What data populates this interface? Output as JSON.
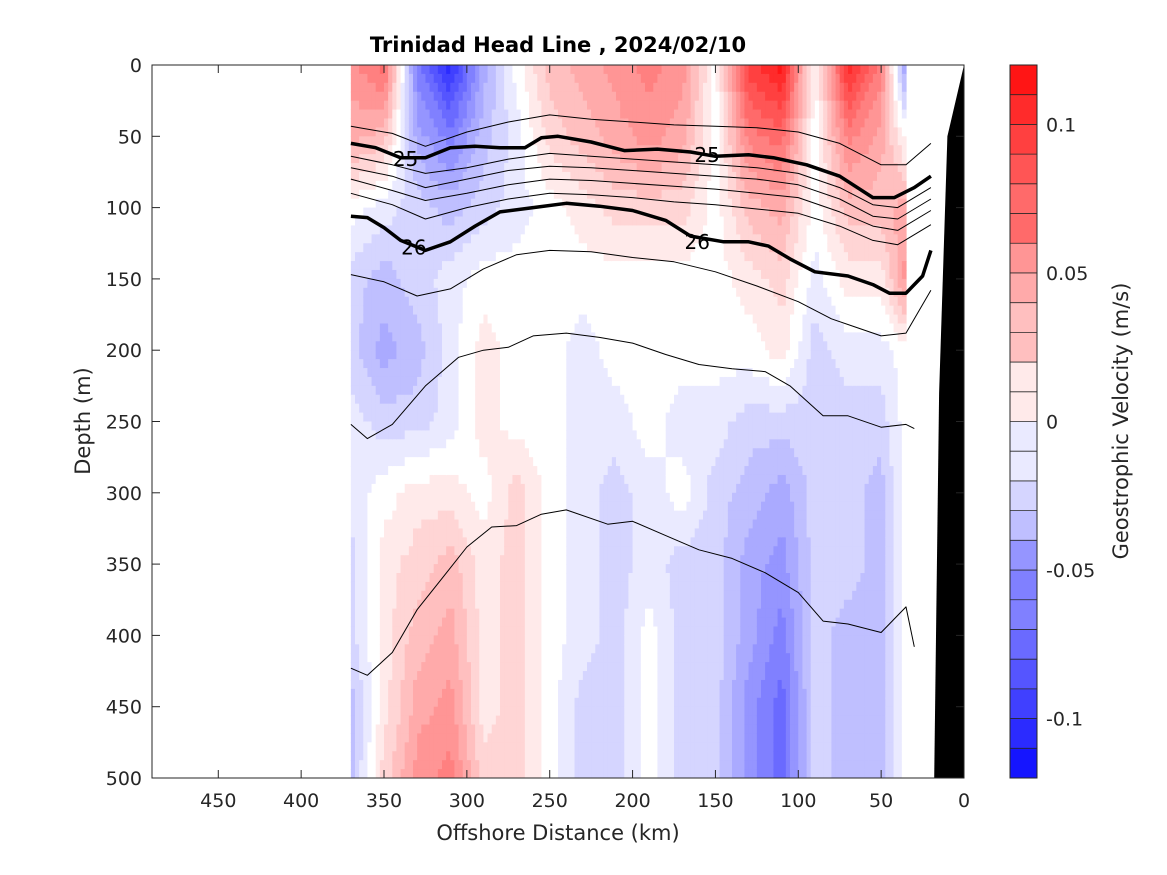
{
  "chart_data": {
    "type": "heatmap",
    "title": "Trinidad Head Line , 2024/02/10",
    "xlabel": "Offshore Distance (km)",
    "ylabel": "Depth (m)",
    "xlim": [
      490,
      0
    ],
    "ylim": [
      0,
      500
    ],
    "x_direction": "reversed",
    "y_direction": "reversed",
    "x_ticks": [
      "450",
      "400",
      "350",
      "300",
      "250",
      "200",
      "150",
      "100",
      "50",
      "0"
    ],
    "y_ticks": [
      "0",
      "50",
      "100",
      "150",
      "200",
      "250",
      "300",
      "350",
      "400",
      "450",
      "500"
    ],
    "colorbar": {
      "label": "Geostrophic Velocity (m/s)",
      "range": [
        -0.12,
        0.12
      ],
      "ticks": [
        "-0.1",
        "-0.05",
        "0",
        "0.05",
        "0.1"
      ],
      "negative_color": "#0000ff",
      "zero_color": "#ffffff",
      "positive_color": "#ff0000"
    },
    "section": {
      "distances_km": [
        370,
        350,
        330,
        310,
        290,
        270,
        250,
        230,
        210,
        190,
        170,
        150,
        130,
        110,
        90,
        70,
        50,
        35
      ],
      "depths_m": [
        0,
        50,
        100,
        150,
        200,
        250,
        300,
        350,
        400,
        450,
        500
      ],
      "velocity_m_s": [
        [
          0.05,
          0.07,
          -0.06,
          -0.1,
          -0.04,
          0.0,
          0.03,
          0.04,
          0.05,
          0.06,
          0.05,
          0.0,
          0.09,
          0.11,
          0.0,
          0.1,
          0.06,
          -0.05
        ],
        [
          0.04,
          0.03,
          -0.04,
          -0.06,
          -0.03,
          -0.01,
          0.02,
          0.03,
          0.04,
          0.05,
          0.04,
          0.0,
          0.06,
          0.07,
          0.0,
          0.06,
          0.04,
          0.0
        ],
        [
          0.0,
          -0.01,
          -0.02,
          -0.03,
          -0.02,
          -0.01,
          0.0,
          0.01,
          0.02,
          0.02,
          0.02,
          0.0,
          0.03,
          0.04,
          0.0,
          0.03,
          0.03,
          0.04
        ],
        [
          -0.02,
          -0.03,
          -0.02,
          -0.01,
          0.0,
          0.0,
          0.0,
          0.0,
          0.0,
          0.0,
          0.0,
          0.0,
          0.01,
          0.02,
          -0.01,
          0.01,
          0.01,
          0.05
        ],
        [
          -0.02,
          -0.04,
          -0.03,
          -0.01,
          0.01,
          0.0,
          0.0,
          -0.01,
          0.0,
          0.0,
          0.0,
          0.0,
          0.0,
          0.01,
          -0.02,
          -0.01,
          -0.01,
          0.0
        ],
        [
          -0.01,
          -0.02,
          -0.02,
          -0.01,
          0.01,
          0.0,
          0.0,
          -0.01,
          -0.01,
          0.0,
          -0.01,
          -0.01,
          -0.02,
          -0.02,
          -0.02,
          -0.02,
          -0.02,
          0.0
        ],
        [
          -0.01,
          0.0,
          0.01,
          0.01,
          0.0,
          0.02,
          0.0,
          -0.01,
          -0.02,
          -0.01,
          0.0,
          -0.02,
          -0.03,
          -0.04,
          -0.02,
          -0.02,
          -0.03,
          0.0
        ],
        [
          -0.02,
          0.01,
          0.02,
          0.03,
          0.01,
          0.02,
          0.0,
          -0.01,
          -0.02,
          -0.01,
          -0.02,
          -0.02,
          -0.04,
          -0.05,
          -0.02,
          -0.02,
          -0.03,
          0.0
        ],
        [
          -0.02,
          0.01,
          0.03,
          0.04,
          0.01,
          0.02,
          0.0,
          -0.01,
          -0.02,
          0.0,
          -0.02,
          -0.02,
          -0.04,
          -0.06,
          -0.02,
          -0.03,
          -0.03,
          0.0
        ],
        [
          -0.03,
          0.01,
          0.04,
          0.05,
          0.01,
          0.02,
          0.0,
          -0.02,
          -0.02,
          0.0,
          -0.02,
          -0.02,
          -0.05,
          -0.07,
          -0.02,
          -0.03,
          -0.03,
          0.0
        ],
        [
          -0.03,
          0.02,
          0.05,
          0.06,
          0.02,
          0.02,
          0.0,
          -0.02,
          -0.02,
          0.0,
          -0.02,
          -0.02,
          -0.05,
          -0.07,
          -0.02,
          -0.03,
          -0.03,
          0.0
        ]
      ]
    },
    "isopycnals": [
      {
        "label": "",
        "bold": false,
        "points": [
          [
            370,
            43
          ],
          [
            345,
            48
          ],
          [
            325,
            57
          ],
          [
            300,
            47
          ],
          [
            275,
            40
          ],
          [
            250,
            35
          ],
          [
            225,
            38
          ],
          [
            200,
            40
          ],
          [
            175,
            42
          ],
          [
            150,
            43
          ],
          [
            125,
            44
          ],
          [
            100,
            47
          ],
          [
            75,
            55
          ],
          [
            50,
            70
          ],
          [
            35,
            70
          ],
          [
            20,
            55
          ]
        ]
      },
      {
        "label": "25",
        "bold": true,
        "label_x": 337,
        "label_y": 66,
        "points": [
          [
            370,
            55
          ],
          [
            355,
            58
          ],
          [
            340,
            65
          ],
          [
            325,
            65
          ],
          [
            310,
            58
          ],
          [
            295,
            57
          ],
          [
            280,
            58
          ],
          [
            265,
            58
          ],
          [
            255,
            51
          ],
          [
            245,
            50
          ],
          [
            225,
            54
          ],
          [
            205,
            60
          ],
          [
            185,
            59
          ],
          [
            165,
            61
          ],
          [
            150,
            64
          ],
          [
            130,
            63
          ],
          [
            115,
            65
          ],
          [
            95,
            70
          ],
          [
            75,
            78
          ],
          [
            55,
            93
          ],
          [
            42,
            93
          ],
          [
            30,
            86
          ],
          [
            20,
            78
          ]
        ]
      },
      {
        "label": "",
        "bold": false,
        "points": [
          [
            370,
            64
          ],
          [
            345,
            70
          ],
          [
            325,
            76
          ],
          [
            300,
            72
          ],
          [
            275,
            66
          ],
          [
            250,
            62
          ],
          [
            225,
            64
          ],
          [
            200,
            66
          ],
          [
            175,
            68
          ],
          [
            150,
            70
          ],
          [
            125,
            72
          ],
          [
            100,
            76
          ],
          [
            75,
            86
          ],
          [
            55,
            98
          ],
          [
            40,
            100
          ],
          [
            20,
            86
          ]
        ]
      },
      {
        "label": "",
        "bold": false,
        "points": [
          [
            370,
            72
          ],
          [
            345,
            78
          ],
          [
            325,
            86
          ],
          [
            300,
            80
          ],
          [
            275,
            74
          ],
          [
            250,
            71
          ],
          [
            225,
            72
          ],
          [
            200,
            74
          ],
          [
            175,
            76
          ],
          [
            150,
            78
          ],
          [
            125,
            80
          ],
          [
            100,
            84
          ],
          [
            75,
            94
          ],
          [
            55,
            106
          ],
          [
            40,
            108
          ],
          [
            20,
            94
          ]
        ]
      },
      {
        "label": "",
        "bold": false,
        "points": [
          [
            370,
            80
          ],
          [
            345,
            88
          ],
          [
            325,
            95
          ],
          [
            300,
            90
          ],
          [
            275,
            84
          ],
          [
            250,
            80
          ],
          [
            225,
            81
          ],
          [
            200,
            83
          ],
          [
            175,
            85
          ],
          [
            150,
            87
          ],
          [
            125,
            90
          ],
          [
            100,
            93
          ],
          [
            75,
            103
          ],
          [
            55,
            113
          ],
          [
            40,
            116
          ],
          [
            20,
            102
          ]
        ]
      },
      {
        "label": "",
        "bold": false,
        "points": [
          [
            370,
            90
          ],
          [
            345,
            98
          ],
          [
            325,
            108
          ],
          [
            300,
            100
          ],
          [
            275,
            94
          ],
          [
            250,
            90
          ],
          [
            225,
            91
          ],
          [
            200,
            93
          ],
          [
            175,
            96
          ],
          [
            150,
            98
          ],
          [
            125,
            101
          ],
          [
            100,
            104
          ],
          [
            75,
            113
          ],
          [
            55,
            123
          ],
          [
            40,
            126
          ],
          [
            20,
            112
          ]
        ]
      },
      {
        "label": "26",
        "bold": true,
        "label_x": 332,
        "label_y": 128,
        "points": [
          [
            370,
            106
          ],
          [
            360,
            107
          ],
          [
            350,
            114
          ],
          [
            340,
            123
          ],
          [
            325,
            130
          ],
          [
            310,
            124
          ],
          [
            295,
            113
          ],
          [
            280,
            103
          ],
          [
            260,
            100
          ],
          [
            240,
            97
          ],
          [
            220,
            99
          ],
          [
            200,
            102
          ],
          [
            180,
            109
          ],
          [
            165,
            120
          ],
          [
            145,
            124
          ],
          [
            130,
            124
          ],
          [
            118,
            127
          ],
          [
            105,
            136
          ],
          [
            90,
            145
          ],
          [
            70,
            148
          ],
          [
            55,
            154
          ],
          [
            45,
            160
          ],
          [
            35,
            160
          ],
          [
            25,
            148
          ],
          [
            20,
            130
          ]
        ]
      },
      {
        "label": "",
        "bold": false,
        "points": [
          [
            370,
            147
          ],
          [
            350,
            152
          ],
          [
            330,
            162
          ],
          [
            310,
            157
          ],
          [
            290,
            143
          ],
          [
            270,
            133
          ],
          [
            250,
            130
          ],
          [
            225,
            131
          ],
          [
            200,
            135
          ],
          [
            175,
            138
          ],
          [
            150,
            145
          ],
          [
            125,
            155
          ],
          [
            100,
            166
          ],
          [
            80,
            178
          ],
          [
            65,
            184
          ],
          [
            50,
            190
          ],
          [
            35,
            188
          ],
          [
            20,
            158
          ]
        ]
      },
      {
        "label": "",
        "bold": false,
        "points": [
          [
            370,
            252
          ],
          [
            360,
            262
          ],
          [
            345,
            252
          ],
          [
            325,
            225
          ],
          [
            305,
            205
          ],
          [
            290,
            200
          ],
          [
            275,
            198
          ],
          [
            260,
            190
          ],
          [
            240,
            188
          ],
          [
            220,
            191
          ],
          [
            200,
            195
          ],
          [
            180,
            203
          ],
          [
            160,
            210
          ],
          [
            140,
            213
          ],
          [
            120,
            215
          ],
          [
            105,
            225
          ],
          [
            85,
            246
          ],
          [
            70,
            246
          ],
          [
            50,
            254
          ],
          [
            35,
            252
          ],
          [
            30,
            255
          ]
        ]
      },
      {
        "label": "",
        "bold": false,
        "points": [
          [
            370,
            423
          ],
          [
            360,
            428
          ],
          [
            345,
            412
          ],
          [
            330,
            382
          ],
          [
            315,
            360
          ],
          [
            300,
            338
          ],
          [
            285,
            324
          ],
          [
            270,
            323
          ],
          [
            255,
            315
          ],
          [
            240,
            312
          ],
          [
            215,
            322
          ],
          [
            200,
            320
          ],
          [
            180,
            330
          ],
          [
            160,
            340
          ],
          [
            140,
            346
          ],
          [
            120,
            356
          ],
          [
            100,
            370
          ],
          [
            85,
            390
          ],
          [
            70,
            392
          ],
          [
            50,
            398
          ],
          [
            35,
            380
          ],
          [
            30,
            408
          ]
        ]
      }
    ],
    "bathymetry": {
      "color": "#000000",
      "points": [
        [
          0,
          0
        ],
        [
          10,
          50
        ],
        [
          15,
          230
        ],
        [
          18,
          500
        ]
      ]
    }
  }
}
